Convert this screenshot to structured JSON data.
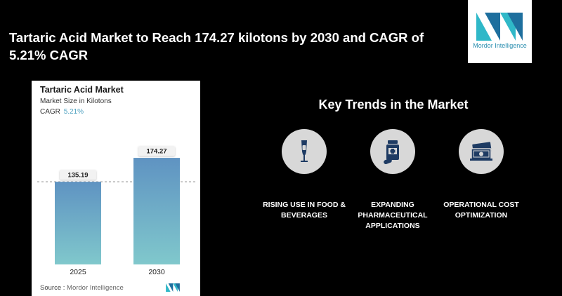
{
  "headline": "Tartaric Acid Market to Reach 174.27 kilotons by 2030 and CAGR of 5.21% CAGR",
  "logo": {
    "text": "Mordor Intelligence"
  },
  "card": {
    "title": "Tartaric Acid Market",
    "subtitle": "Market Size in Kilotons",
    "cagr_label": "CAGR",
    "cagr_value": "5.21%",
    "source_label": "Source :",
    "source_value": "Mordor Intelligence"
  },
  "chart_data": {
    "type": "bar",
    "title": "Tartaric Acid Market",
    "ylabel": "Market Size in Kilotons",
    "categories": [
      "2025",
      "2030"
    ],
    "values": [
      135.19,
      174.27
    ],
    "value_labels": [
      "135.19",
      "174.27"
    ],
    "ylim": [
      0,
      195
    ],
    "reference_line": 135.19,
    "colors": {
      "bar_top": "#5f93c2",
      "bar_bottom": "#80c8cc"
    }
  },
  "trends": {
    "title": "Key Trends in the Market",
    "items": [
      {
        "icon": "wine-glass-icon",
        "label": "RISING USE IN FOOD & BEVERAGES"
      },
      {
        "icon": "medicine-bottle-icon",
        "label": "EXPANDING PHARMACEUTICAL APPLICATIONS"
      },
      {
        "icon": "money-bills-icon",
        "label": "OPERATIONAL COST OPTIMIZATION"
      }
    ]
  }
}
